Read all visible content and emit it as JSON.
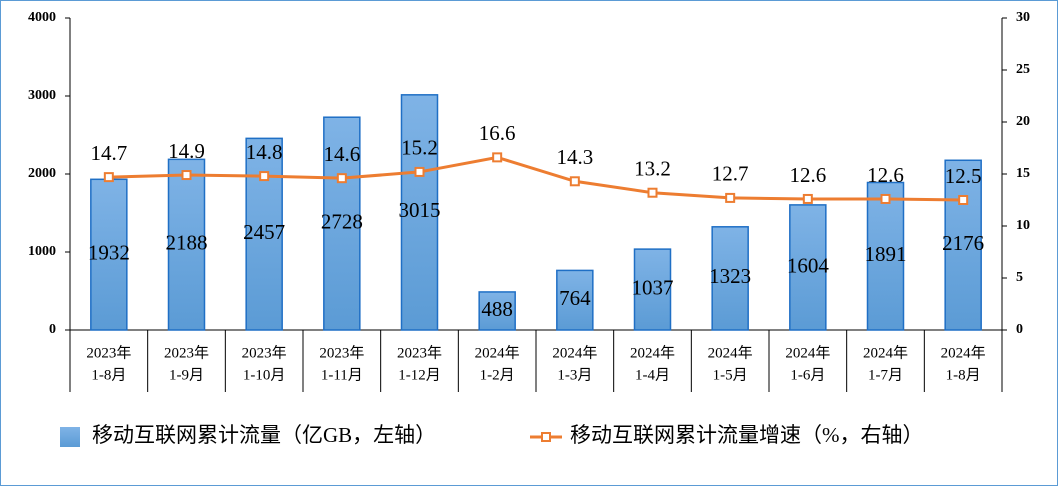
{
  "chart_data": {
    "type": "combo",
    "categories": [
      [
        "2023年",
        "1-8月"
      ],
      [
        "2023年",
        "1-9月"
      ],
      [
        "2023年",
        "1-10月"
      ],
      [
        "2023年",
        "1-11月"
      ],
      [
        "2023年",
        "1-12月"
      ],
      [
        "2024年",
        "1-2月"
      ],
      [
        "2024年",
        "1-3月"
      ],
      [
        "2024年",
        "1-4月"
      ],
      [
        "2024年",
        "1-5月"
      ],
      [
        "2024年",
        "1-6月"
      ],
      [
        "2024年",
        "1-7月"
      ],
      [
        "2024年",
        "1-8月"
      ]
    ],
    "series": [
      {
        "name": "移动互联网累计流量（亿GB，左轴）",
        "type": "bar",
        "color": "#5b9bd5",
        "values": [
          1932,
          2188,
          2457,
          2728,
          3015,
          488,
          764,
          1037,
          1323,
          1604,
          1891,
          2176
        ]
      },
      {
        "name": "移动互联网累计流量增速（%，右轴）",
        "type": "line",
        "axis": "y2",
        "color": "#ed7d31",
        "values": [
          14.7,
          14.9,
          14.8,
          14.6,
          15.2,
          16.6,
          14.3,
          13.2,
          12.7,
          12.6,
          12.6,
          12.5
        ]
      }
    ],
    "ylim": [
      0,
      4000
    ],
    "yticks": [
      0,
      1000,
      2000,
      3000,
      4000
    ],
    "y2lim": [
      0,
      30
    ],
    "y2ticks": [
      0,
      5,
      10,
      15,
      20,
      25,
      30
    ],
    "legend": "bottom"
  }
}
